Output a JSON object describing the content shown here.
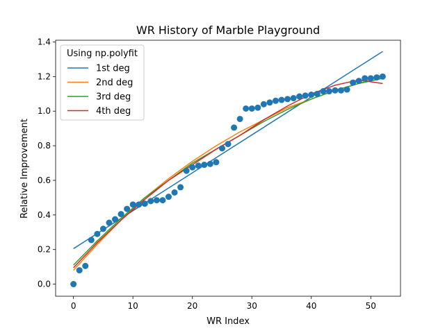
{
  "chart_data": {
    "type": "scatter",
    "title": "WR History of Marble Playground",
    "xlabel": "WR Index",
    "ylabel": "Relative Improvement",
    "xlim": [
      -3,
      55
    ],
    "ylim": [
      -0.07,
      1.41
    ],
    "xticks": [
      0,
      10,
      20,
      30,
      40,
      50
    ],
    "yticks": [
      0.0,
      0.2,
      0.4,
      0.6,
      0.8,
      1.0,
      1.2,
      1.4
    ],
    "ytick_labels": [
      "0.0",
      "0.2",
      "0.4",
      "0.6",
      "0.8",
      "1.0",
      "1.2",
      "1.4"
    ],
    "grid": false,
    "points": {
      "color": "#1f77b4",
      "x": [
        0,
        1,
        2,
        3,
        4,
        5,
        6,
        7,
        8,
        9,
        10,
        11,
        12,
        13,
        14,
        15,
        16,
        17,
        18,
        19,
        20,
        21,
        22,
        23,
        24,
        25,
        26,
        27,
        28,
        29,
        30,
        31,
        32,
        33,
        34,
        35,
        36,
        37,
        38,
        39,
        40,
        41,
        42,
        43,
        44,
        45,
        46,
        47,
        48,
        49,
        50,
        51,
        52
      ],
      "y": [
        0.0,
        0.08,
        0.105,
        0.255,
        0.29,
        0.32,
        0.355,
        0.375,
        0.405,
        0.435,
        0.46,
        0.46,
        0.465,
        0.48,
        0.485,
        0.485,
        0.505,
        0.53,
        0.56,
        0.655,
        0.675,
        0.685,
        0.69,
        0.695,
        0.705,
        0.785,
        0.81,
        0.905,
        0.955,
        1.015,
        1.015,
        1.02,
        1.04,
        1.05,
        1.06,
        1.065,
        1.07,
        1.075,
        1.085,
        1.09,
        1.095,
        1.1,
        1.115,
        1.115,
        1.12,
        1.12,
        1.125,
        1.165,
        1.175,
        1.19,
        1.19,
        1.195,
        1.2
      ]
    },
    "legend": {
      "title": "Using np.polyfit",
      "position": "upper-left"
    },
    "series": [
      {
        "name": "1st deg",
        "color": "#1f77b4",
        "x": [
          0,
          52
        ],
        "y": [
          0.205,
          1.345
        ]
      },
      {
        "name": "2nd deg",
        "color": "#ff7f0e",
        "x": [
          0,
          4,
          8,
          12,
          16,
          20,
          24,
          28,
          32,
          36,
          40,
          44,
          48,
          52
        ],
        "y": [
          0.08,
          0.23,
          0.37,
          0.5,
          0.61,
          0.71,
          0.8,
          0.88,
          0.95,
          1.02,
          1.07,
          1.12,
          1.16,
          1.21
        ]
      },
      {
        "name": "3rd deg",
        "color": "#2ca02c",
        "x": [
          0,
          4,
          8,
          12,
          16,
          20,
          24,
          28,
          32,
          36,
          40,
          44,
          48,
          52
        ],
        "y": [
          0.11,
          0.25,
          0.38,
          0.5,
          0.6,
          0.7,
          0.78,
          0.86,
          0.94,
          1.01,
          1.07,
          1.12,
          1.16,
          1.19
        ]
      },
      {
        "name": "4th deg",
        "color": "#d62728",
        "x": [
          0,
          4,
          8,
          12,
          16,
          20,
          24,
          28,
          32,
          36,
          40,
          44,
          48,
          52
        ],
        "y": [
          0.095,
          0.24,
          0.37,
          0.49,
          0.6,
          0.69,
          0.78,
          0.86,
          0.95,
          1.03,
          1.1,
          1.15,
          1.18,
          1.16
        ]
      }
    ]
  }
}
